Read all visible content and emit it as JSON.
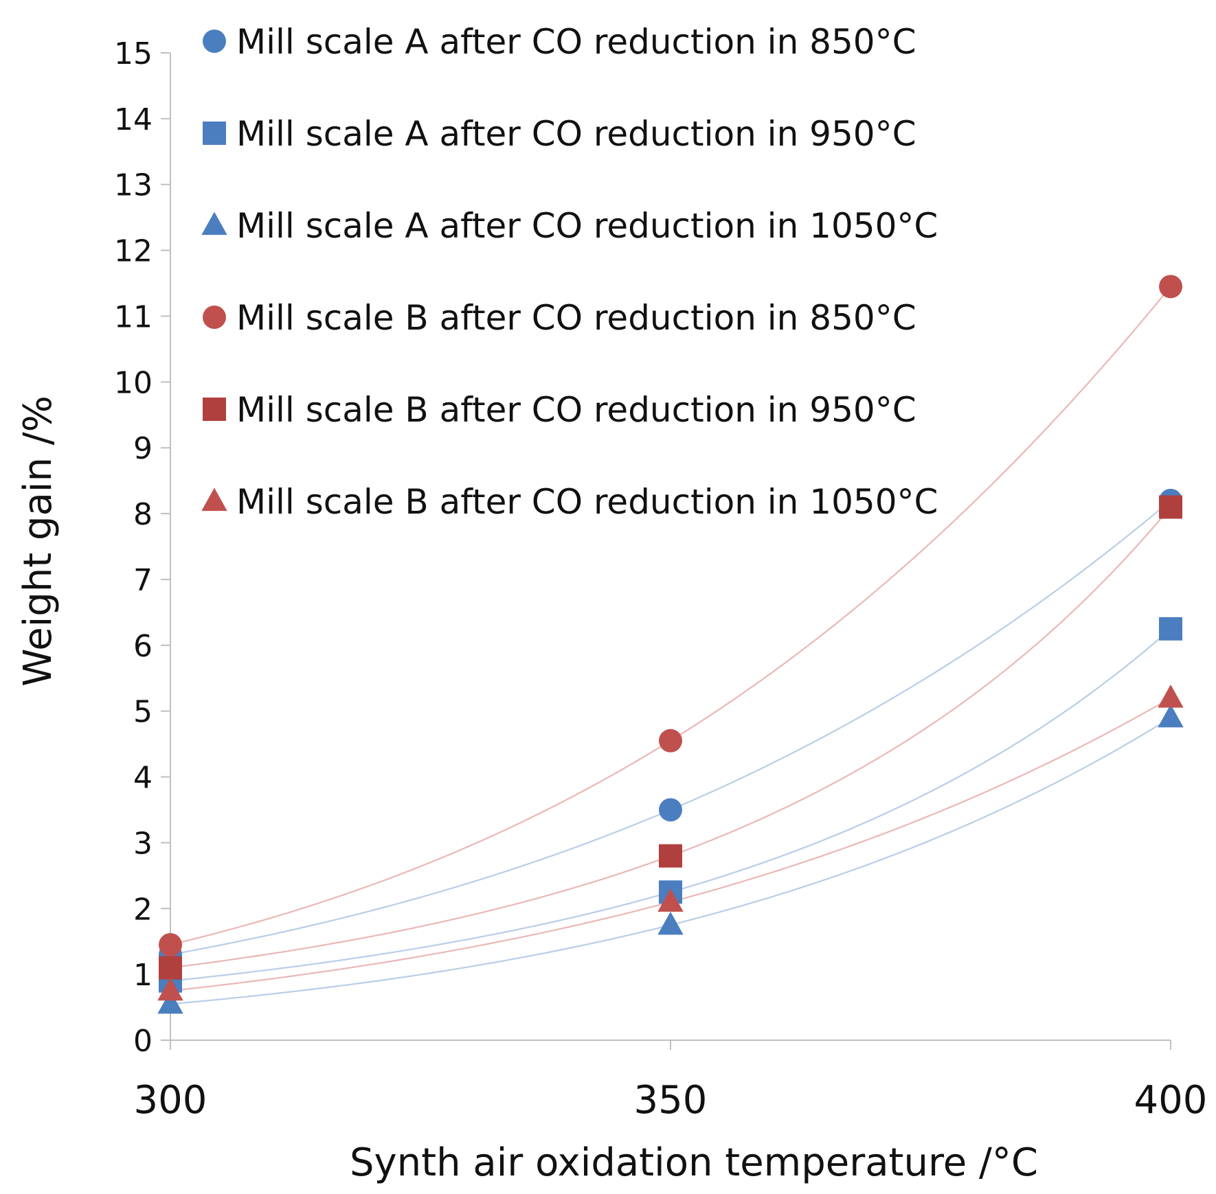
{
  "chart_data": {
    "type": "scatter",
    "title": "",
    "xlabel": "Synth air oxidation temperature /°C",
    "ylabel": "Weight gain /%",
    "x": [
      300,
      350,
      400
    ],
    "xlim": [
      300,
      400
    ],
    "ylim": [
      0,
      15
    ],
    "x_ticks": [
      "300",
      "350",
      "400"
    ],
    "y_ticks": [
      "0",
      "1",
      "2",
      "3",
      "4",
      "5",
      "6",
      "7",
      "8",
      "9",
      "10",
      "11",
      "12",
      "13",
      "14",
      "15"
    ],
    "grid": false,
    "legend_position": "top-left",
    "trendline": "exponential",
    "series": [
      {
        "name": "Mill scale A after CO reduction in 850°C",
        "marker": "circle",
        "color": "#4a7ebf",
        "line_color": "#b9cde8",
        "values": [
          1.3,
          3.5,
          8.2
        ]
      },
      {
        "name": "Mill scale A after CO reduction in 950°C",
        "marker": "square",
        "color": "#4a7ebf",
        "line_color": "#b9cde8",
        "values": [
          0.9,
          2.25,
          6.25
        ]
      },
      {
        "name": "Mill scale A after CO reduction in 1050°C",
        "marker": "triangle",
        "color": "#4a7ebf",
        "line_color": "#b9cde8",
        "values": [
          0.55,
          1.75,
          4.9
        ]
      },
      {
        "name": "Mill scale B after CO reduction in 850°C",
        "marker": "circle",
        "color": "#c0504d",
        "line_color": "#eab7b5",
        "values": [
          1.45,
          4.55,
          11.45
        ]
      },
      {
        "name": "Mill scale B after CO reduction in 950°C",
        "marker": "square",
        "color": "#b0403d",
        "line_color": "#eab7b5",
        "values": [
          1.1,
          2.8,
          8.1
        ]
      },
      {
        "name": "Mill scale B after CO reduction in 1050°C",
        "marker": "triangle",
        "color": "#c0504d",
        "line_color": "#eab7b5",
        "values": [
          0.75,
          2.1,
          5.2
        ]
      }
    ]
  }
}
